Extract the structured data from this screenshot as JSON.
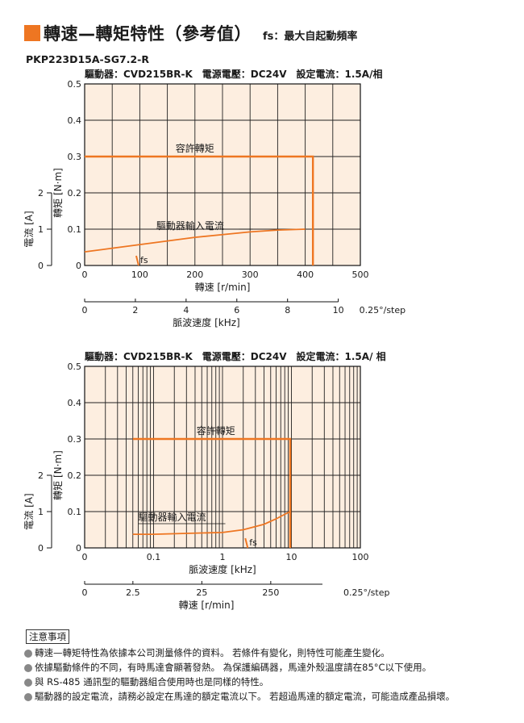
{
  "header": {
    "title": "轉速—轉矩特性（參考值）",
    "fs_note": "fs：最大自起動頻率"
  },
  "model": "PKP223D15A-SG7.2-R",
  "colors": {
    "accent": "#ee7622",
    "plot_bg": "#fdeee0",
    "line": "#ee7622",
    "grid": "#222222"
  },
  "chart_data": [
    {
      "type": "line",
      "title": "驅動器：CVD215BR-K　電源電壓：DC24V　設定電流：1.5A/相",
      "x_scale": "linear",
      "xlabel": "轉速 [r/min]",
      "xlim": [
        0,
        500
      ],
      "x_ticks": [
        "0",
        "100",
        "200",
        "300",
        "400",
        "500"
      ],
      "secondary_xlabel": "脈波速度 [kHz]",
      "secondary_xlim": [
        0,
        10.87
      ],
      "secondary_x_ticks": [
        "0",
        "2",
        "4",
        "6",
        "8",
        "10"
      ],
      "secondary_x_note": "0.25°/step",
      "ylabel": "轉矩 [N·m]",
      "ylim": [
        0,
        0.5
      ],
      "y_ticks": [
        "0",
        "0.1",
        "0.2",
        "0.3",
        "0.4",
        "0.5"
      ],
      "y2label": "電流 [A]",
      "y2lim": [
        0,
        2
      ],
      "y2_ticks": [
        "0",
        "1",
        "2"
      ],
      "grid": true,
      "series": [
        {
          "name": "容許轉矩",
          "x": [
            0,
            414,
            414
          ],
          "y": [
            0.3,
            0.3,
            0
          ]
        },
        {
          "name": "驅動器輸入電流",
          "x": [
            0,
            50,
            100,
            150,
            200,
            250,
            300,
            350,
            400
          ],
          "y": [
            0.15,
            0.19,
            0.23,
            0.27,
            0.31,
            0.34,
            0.37,
            0.39,
            0.4
          ]
        }
      ],
      "fs_label": "fs",
      "fs_x": 95
    },
    {
      "type": "line",
      "title": "驅動器：CVD215BR-K　電源電壓：DC24V　設定電流：1.5A/ 相",
      "x_scale": "log",
      "xlabel": "脈波速度 [kHz]",
      "xlim": [
        0.01,
        100
      ],
      "x_ticks": [
        "0",
        "0.1",
        "1",
        "10",
        "100"
      ],
      "secondary_xlabel": "轉速 [r/min]",
      "secondary_x_ticks": [
        "0",
        "2.5",
        "25",
        "250"
      ],
      "secondary_x_note": "0.25°/step",
      "ylabel": "轉矩 [N·m]",
      "ylim": [
        0,
        0.5
      ],
      "y_ticks": [
        "0",
        "0.1",
        "0.2",
        "0.3",
        "0.4",
        "0.5"
      ],
      "y2label": "電流 [A]",
      "y2lim": [
        0,
        2
      ],
      "y2_ticks": [
        "0",
        "1",
        "2"
      ],
      "grid": true,
      "series": [
        {
          "name": "容許轉矩",
          "x": [
            0.05,
            9.6,
            9.6
          ],
          "y": [
            0.3,
            0.3,
            0
          ]
        },
        {
          "name": "驅動器輸入電流",
          "x": [
            0.05,
            0.1,
            0.3,
            1,
            2,
            4,
            6,
            8,
            9.6
          ],
          "y": [
            0.15,
            0.15,
            0.16,
            0.17,
            0.2,
            0.26,
            0.32,
            0.37,
            0.4
          ]
        }
      ],
      "fs_label": "fs",
      "fs_x": 2.2
    }
  ],
  "notes": {
    "heading": "注意事項",
    "items": [
      "轉速—轉矩特性為依據本公司測量條件的資料。 若條件有變化，則特性可能產生變化。",
      "依據驅動條件的不同，有時馬達會顯著發熱。 為保護編碼器，馬達外殼溫度請在85°C以下使用。",
      "與 RS-485 通訊型的驅動器組合使用時也是同樣的特性。",
      "驅動器的設定電流，請務必設定在馬達的額定電流以下。 若超過馬達的額定電流，可能造成產品損壞。"
    ]
  }
}
